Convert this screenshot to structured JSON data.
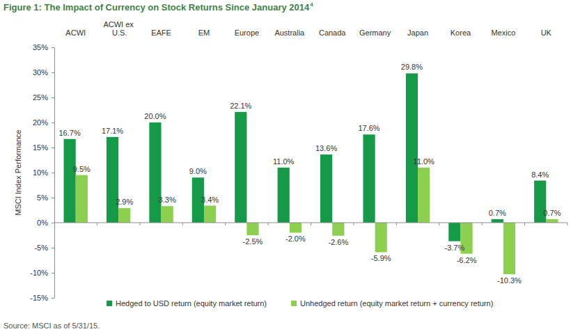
{
  "chart_data": {
    "type": "bar",
    "title": "Figure 1: The Impact of Currency on Stock Returns Since January 2014",
    "title_footnote": "4",
    "y_label": "MSCI Index Performance",
    "source": "Source: MSCI as of 5/31/15.",
    "categories": [
      "ACWI",
      "ACWI ex U.S.",
      "EAFE",
      "EM",
      "Europe",
      "Australia",
      "Canada",
      "Germany",
      "Japan",
      "Korea",
      "Mexico",
      "UK"
    ],
    "series": [
      {
        "name": "Hedged to USD return (equity market return)",
        "color": "#159a48",
        "values": [
          16.7,
          17.1,
          20.0,
          9.0,
          22.1,
          11.0,
          13.6,
          17.6,
          29.8,
          -3.7,
          0.7,
          8.4
        ],
        "value_labels": [
          "16.7%",
          "17.1%",
          "20.0%",
          "9.0%",
          "22.1%",
          "11.0%",
          "13.6%",
          "17.6%",
          "29.8%",
          "-3.7%",
          "0.7%",
          "8.4%"
        ]
      },
      {
        "name": "Unhedged return (equity market return + currency return)",
        "color": "#8dcf4f",
        "values": [
          9.5,
          2.9,
          3.3,
          3.4,
          -2.5,
          -2.0,
          -2.6,
          -5.9,
          11.0,
          -6.2,
          -10.3,
          0.7
        ],
        "value_labels": [
          "9.5%",
          "2.9%",
          "3.3%",
          "3.4%",
          "-2.5%",
          "-2.0%",
          "-2.6%",
          "-5.9%",
          "11.0%",
          "-6.2%",
          "-10.3%",
          "0.7%"
        ]
      }
    ],
    "ylim": [
      -15,
      35
    ],
    "yticks": [
      {
        "value": -15,
        "label": "-15%"
      },
      {
        "value": -10,
        "label": "-10%"
      },
      {
        "value": -5,
        "label": "-5%"
      },
      {
        "value": 0,
        "label": "0%"
      },
      {
        "value": 5,
        "label": "5%"
      },
      {
        "value": 10,
        "label": "10%"
      },
      {
        "value": 15,
        "label": "15%"
      },
      {
        "value": 20,
        "label": "20%"
      },
      {
        "value": 25,
        "label": "25%"
      },
      {
        "value": 30,
        "label": "30%"
      },
      {
        "value": 35,
        "label": "35%"
      }
    ],
    "grid": false,
    "legend": "bottom",
    "data_labels": true
  }
}
